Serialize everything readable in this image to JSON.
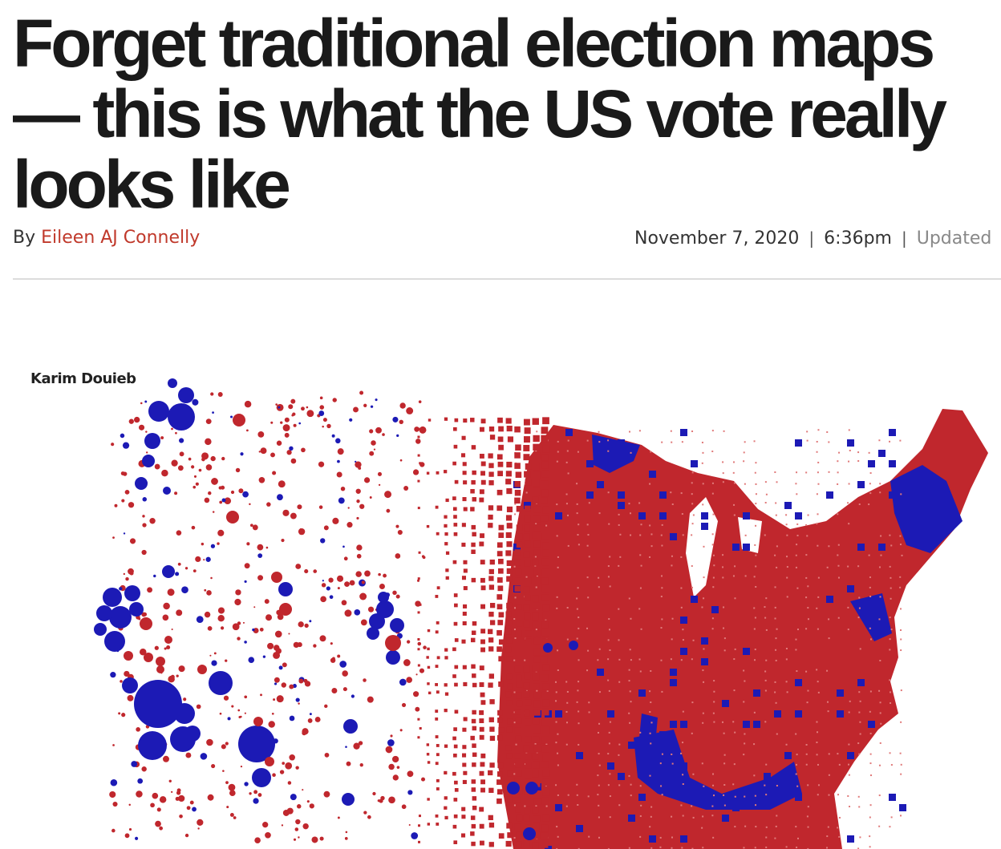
{
  "article": {
    "headline": "Forget traditional election maps — this is what the US vote really looks like",
    "byline_prefix": "By",
    "author": "Eileen AJ Connelly",
    "date": "November 7, 2020",
    "time": "6:36pm",
    "updated_label": "Updated"
  },
  "figure": {
    "credit": "Karim Douieb"
  },
  "colors": {
    "red": "#c0272d",
    "blue": "#1c1ab5",
    "author_link": "#c0392b"
  }
}
